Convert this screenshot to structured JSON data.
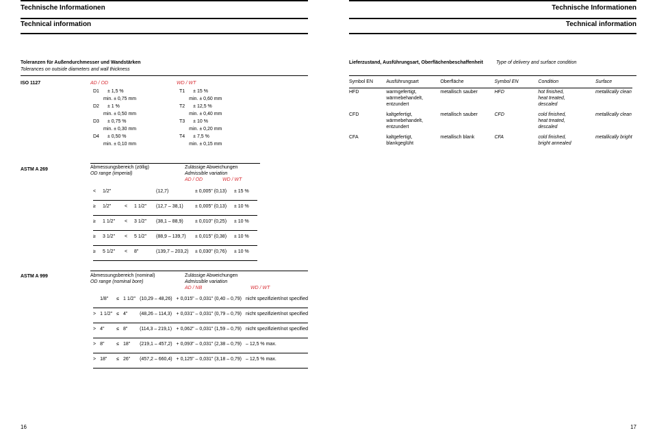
{
  "header": {
    "de": "Technische Informationen",
    "en": "Technical information"
  },
  "left": {
    "tolerances": {
      "de": "Toleranzen für Außendurchmesser und Wandstärken",
      "en": "Tolerances on outside diameters and wall thickness"
    },
    "iso1127": {
      "label": "ISO 1127",
      "ad_od": "AD / OD",
      "wd_wt": "WD / WT",
      "ad_rows": [
        {
          "c": "D1",
          "tol": "± 1,5 %",
          "min": "min. ± 0,75 mm"
        },
        {
          "c": "D2",
          "tol": "± 1 %",
          "min": "min. ± 0,50 mm"
        },
        {
          "c": "D3",
          "tol": "± 0,75 %",
          "min": "min. ± 0,30 mm"
        },
        {
          "c": "D4",
          "tol": "± 0,50 %",
          "min": "min. ± 0,10 mm"
        }
      ],
      "wd_rows": [
        {
          "c": "T1",
          "tol": "± 15 %",
          "min": "min. ± 0,60 mm"
        },
        {
          "c": "T2",
          "tol": "± 12,5 %",
          "min": "min. ± 0,40 mm"
        },
        {
          "c": "T3",
          "tol": "± 10 %",
          "min": "min. ± 0,20 mm"
        },
        {
          "c": "T4",
          "tol": "± 7,5 %",
          "min": "min. ± 0,15 mm"
        }
      ]
    },
    "astm269": {
      "label": "ASTM A 269",
      "hd_de": "Abmessungsbereich (zöllig)",
      "hd_en": "OD range (imperial)",
      "zul_de": "Zulässige Abweichungen",
      "zul_en": "Admissible variation",
      "ad_od": "AD / OD",
      "wd_wt": "WD / WT",
      "rows": [
        {
          "op1": "<",
          "a": "1/2\"",
          "op2": "",
          "b": "",
          "mm": "(12,7)",
          "ad": "± 0,005\" (0,13)",
          "wt": "± 15 %"
        },
        {
          "op1": "≥",
          "a": "1/2\"",
          "op2": "<",
          "b": "1 1/2\"",
          "mm": "(12,7 – 38,1)",
          "ad": "± 0,005\" (0,13)",
          "wt": "± 10 %"
        },
        {
          "op1": "≥",
          "a": "1 1/2\"",
          "op2": "<",
          "b": "3 1/2\"",
          "mm": "(38,1 – 88,9)",
          "ad": "± 0,010\" (0,25)",
          "wt": "± 10 %"
        },
        {
          "op1": "≥",
          "a": "3 1/2\"",
          "op2": "<",
          "b": "5 1/2\"",
          "mm": "(88,9 – 139,7)",
          "ad": "± 0,015\" (0,38)",
          "wt": "± 10 %"
        },
        {
          "op1": "≥",
          "a": "5 1/2\"",
          "op2": "<",
          "b": "8\"",
          "mm": "(139,7 – 203,2)",
          "ad": "± 0,030\" (0,76)",
          "wt": "± 10 %"
        }
      ]
    },
    "astm999": {
      "label": "ASTM A 999",
      "hd_de": "Abmessungsbereich (nominal)",
      "hd_en": "OD range (nominal bore)",
      "zul_de": "Zulässige Abweichungen",
      "zul_en": "Admissible variation",
      "ad_nb": "AD / NB",
      "wd_wt": "WD / WT",
      "rows": [
        {
          "r1": "",
          "a": "1/8\"",
          "op": "≤",
          "b": "1 1/2\"",
          "mm": "(10,29 – 48,26)",
          "ad": "+ 0,015\" – 0,031\"  (0,40 – 0,79)",
          "wt": "nicht spezifiziert/not specified"
        },
        {
          "r1": ">",
          "a": "1 1/2\"",
          "op": "≤",
          "b": "4\"",
          "mm": "(48,26 – 114,3)",
          "ad": "+ 0,031\" – 0,031\"  (0,79 – 0,79)",
          "wt": "nicht spezifiziert/not specified"
        },
        {
          "r1": ">",
          "a": "4\"",
          "op": "≤",
          "b": "8\"",
          "mm": "(114,3 – 219,1)",
          "ad": "+ 0,062\" – 0,031\"  (1,59 – 0,79)",
          "wt": "nicht spezifiziert/not specified"
        },
        {
          "r1": ">",
          "a": "8\"",
          "op": "≤",
          "b": "18\"",
          "mm": "(219,1 – 457,2)",
          "ad": "+ 0,093\" – 0,031\"  (2,38 – 0,79)",
          "wt": "– 12,5 % max."
        },
        {
          "r1": ">",
          "a": "18\"",
          "op": "≤",
          "b": "26\"",
          "mm": "(457,2 – 660,4)",
          "ad": "+ 0,125\" – 0,031\"  (3,18 – 0,79)",
          "wt": "– 12,5 % max."
        }
      ]
    },
    "pgnum": "16"
  },
  "right": {
    "delivery": {
      "de": "Lieferzustand, Ausführungsart, Oberflächenbeschaffenheit",
      "en": "Type of delivery and surface condition"
    },
    "table": {
      "head": {
        "sym_l": "Symbol EN",
        "aus": "Ausführungsart",
        "ober": "Oberfläche",
        "sym_r": "Symbol EN",
        "cond": "Condition",
        "surf": "Surface"
      },
      "rows": [
        {
          "sym_l": "HFD",
          "aus": [
            "warmgefertigt,",
            "wärmebehandelt,",
            "entzundert"
          ],
          "ober": "metallisch sauber",
          "sym_r": "HFD",
          "cond": [
            "hot finished,",
            "heat treated,",
            "descaled"
          ],
          "surf": "metallically clean"
        },
        {
          "sym_l": "CFD",
          "aus": [
            "kaltgefertigt,",
            "wärmebehandelt,",
            "entzundert"
          ],
          "ober": "metallisch sauber",
          "sym_r": "CFD",
          "cond": [
            "cold finished,",
            "heat treated,",
            "descaled"
          ],
          "surf": "metallically clean"
        },
        {
          "sym_l": "CFA",
          "aus": [
            "kaltgefertigt,",
            "blankgeglüht"
          ],
          "ober": "metallisch blank",
          "sym_r": "CFA",
          "cond": [
            "cold finished,",
            "bright annealed"
          ],
          "surf": "metallically bright"
        }
      ]
    },
    "pgnum": "17"
  }
}
